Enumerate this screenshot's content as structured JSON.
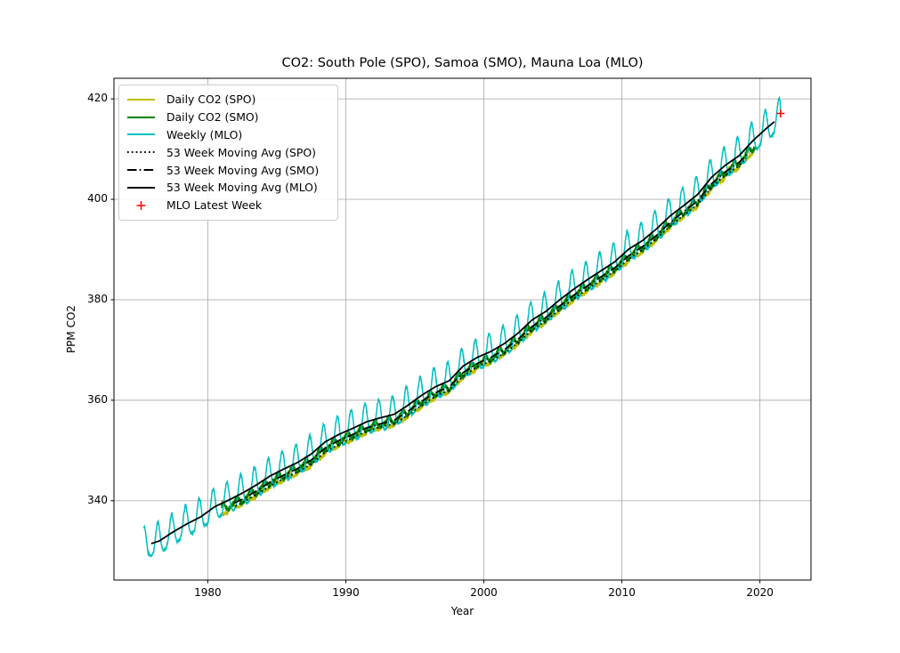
{
  "chart_data": {
    "type": "line",
    "title": "CO2: South Pole (SPO), Samoa (SMO), Mauna Loa (MLO)",
    "xlabel": "Year",
    "ylabel": "PPM CO2",
    "xlim": [
      1973.2,
      2023.7
    ],
    "ylim": [
      324.2,
      424.1
    ],
    "xticks": [
      1980,
      1990,
      2000,
      2010,
      2020
    ],
    "yticks": [
      340,
      360,
      380,
      400,
      420
    ],
    "grid": true,
    "legend_position": "upper-left",
    "colors": {
      "grid": "#b0b0b0",
      "frame": "#000000",
      "spo_daily": "#bfbf00",
      "smo_daily": "#008000",
      "mlo_weekly": "#00bfbf",
      "moving_avg": "#000000",
      "latest_week": "#ff0000"
    },
    "anchors": {
      "mlo": [
        [
          1975,
          331.1
        ],
        [
          1976,
          332.0
        ],
        [
          1977,
          333.8
        ],
        [
          1978,
          335.4
        ],
        [
          1979,
          336.8
        ],
        [
          1980,
          338.8
        ],
        [
          1981,
          340.1
        ],
        [
          1982,
          341.5
        ],
        [
          1983,
          343.1
        ],
        [
          1984,
          344.9
        ],
        [
          1985,
          346.3
        ],
        [
          1986,
          347.6
        ],
        [
          1987,
          349.3
        ],
        [
          1988,
          351.7
        ],
        [
          1989,
          353.2
        ],
        [
          1990,
          354.4
        ],
        [
          1991,
          355.7
        ],
        [
          1992,
          356.5
        ],
        [
          1993,
          357.2
        ],
        [
          1994,
          359.0
        ],
        [
          1995,
          361.0
        ],
        [
          1996,
          362.7
        ],
        [
          1997,
          363.9
        ],
        [
          1998,
          366.8
        ],
        [
          1999,
          368.5
        ],
        [
          2000,
          369.7
        ],
        [
          2001,
          371.3
        ],
        [
          2002,
          373.4
        ],
        [
          2003,
          376.0
        ],
        [
          2004,
          377.7
        ],
        [
          2005,
          380.0
        ],
        [
          2006,
          382.1
        ],
        [
          2007,
          384.0
        ],
        [
          2008,
          385.8
        ],
        [
          2009,
          387.6
        ],
        [
          2010,
          390.1
        ],
        [
          2011,
          391.8
        ],
        [
          2012,
          394.1
        ],
        [
          2013,
          396.7
        ],
        [
          2014,
          398.8
        ],
        [
          2015,
          401.0
        ],
        [
          2016,
          404.4
        ],
        [
          2017,
          406.8
        ],
        [
          2018,
          408.7
        ],
        [
          2019,
          411.7
        ],
        [
          2020,
          414.2
        ],
        [
          2021,
          416.5
        ]
      ],
      "smo": [
        [
          1981,
          339.0
        ],
        [
          1982,
          340.3
        ],
        [
          1983,
          341.9
        ],
        [
          1984,
          343.7
        ],
        [
          1985,
          345.1
        ],
        [
          1986,
          346.4
        ],
        [
          1987,
          348.1
        ],
        [
          1988,
          350.5
        ],
        [
          1989,
          352.0
        ],
        [
          1990,
          353.2
        ],
        [
          1991,
          354.5
        ],
        [
          1992,
          355.3
        ],
        [
          1993,
          356.0
        ],
        [
          1994,
          357.8
        ],
        [
          1995,
          359.8
        ],
        [
          1996,
          361.5
        ],
        [
          1997,
          362.7
        ],
        [
          1998,
          365.5
        ],
        [
          1999,
          367.3
        ],
        [
          2000,
          368.5
        ],
        [
          2001,
          370.1
        ],
        [
          2002,
          372.2
        ],
        [
          2003,
          374.7
        ],
        [
          2004,
          376.5
        ],
        [
          2005,
          378.8
        ],
        [
          2006,
          380.9
        ],
        [
          2007,
          382.8
        ],
        [
          2008,
          384.6
        ],
        [
          2009,
          386.4
        ],
        [
          2010,
          388.8
        ],
        [
          2011,
          390.6
        ],
        [
          2012,
          392.8
        ],
        [
          2013,
          395.4
        ],
        [
          2014,
          397.6
        ],
        [
          2015,
          399.7
        ],
        [
          2016,
          403.1
        ],
        [
          2017,
          405.5
        ],
        [
          2018,
          407.4
        ],
        [
          2019,
          410.3
        ]
      ],
      "spo": [
        [
          1981,
          338.2
        ],
        [
          1982,
          339.6
        ],
        [
          1983,
          341.2
        ],
        [
          1984,
          342.9
        ],
        [
          1985,
          344.4
        ],
        [
          1986,
          345.7
        ],
        [
          1987,
          347.3
        ],
        [
          1988,
          349.7
        ],
        [
          1989,
          351.2
        ],
        [
          1990,
          352.5
        ],
        [
          1991,
          353.8
        ],
        [
          1992,
          354.7
        ],
        [
          1993,
          355.3
        ],
        [
          1994,
          357.0
        ],
        [
          1995,
          359.0
        ],
        [
          1996,
          360.8
        ],
        [
          1997,
          362.0
        ],
        [
          1998,
          364.8
        ],
        [
          1999,
          366.6
        ],
        [
          2000,
          367.8
        ],
        [
          2001,
          369.4
        ],
        [
          2002,
          371.5
        ],
        [
          2003,
          374.0
        ],
        [
          2004,
          375.8
        ],
        [
          2005,
          378.1
        ],
        [
          2006,
          380.2
        ],
        [
          2007,
          382.1
        ],
        [
          2008,
          383.9
        ],
        [
          2009,
          385.7
        ],
        [
          2010,
          388.1
        ],
        [
          2011,
          389.9
        ],
        [
          2012,
          392.1
        ],
        [
          2013,
          394.7
        ],
        [
          2014,
          396.9
        ],
        [
          2015,
          399.0
        ],
        [
          2016,
          402.4
        ],
        [
          2017,
          404.8
        ],
        [
          2018,
          406.7
        ],
        [
          2019,
          409.6
        ]
      ]
    },
    "series": [
      {
        "name": "Daily CO2 (SPO)",
        "kind": "curve",
        "color": "#bfbf00",
        "dash": "solid",
        "width": 1.4,
        "anchors": "spo",
        "range": [
          1981.05,
          2019.5
        ],
        "step": 0.01,
        "seasonal": {
          "a1": 0.55,
          "p1": 0.8,
          "a2": 0.15,
          "p2": 0.8
        },
        "noise": 0.45
      },
      {
        "name": "Daily CO2 (SMO)",
        "kind": "curve",
        "color": "#008000",
        "dash": "solid",
        "width": 1.4,
        "anchors": "smo",
        "range": [
          1981.0,
          2019.7
        ],
        "step": 0.01,
        "seasonal": {
          "a1": 0.7,
          "p1": 0.08,
          "a2": 0.2,
          "p2": 0.15
        },
        "noise": 0.55
      },
      {
        "name": "Weekly (MLO)",
        "kind": "curve",
        "color": "#00bfbf",
        "dash": "solid",
        "width": 1.5,
        "anchors": "mlo",
        "range": [
          1975.37,
          2021.47
        ],
        "step": 0.01923,
        "seasonal": {
          "a1": 3.1,
          "p1": 0.38,
          "a2": 0.7,
          "p2": 0.38
        },
        "noise": 0.3,
        "endpoint": [
          2021.5,
          417.1
        ]
      },
      {
        "name": "53 Week Moving Avg (SPO)",
        "kind": "curve",
        "color": "#000000",
        "dash": "dotted",
        "width": 1.7,
        "anchors": "spo",
        "range": [
          1982.0,
          2019.0
        ],
        "step": 0.05
      },
      {
        "name": "53 Week Moving Avg (SMO)",
        "kind": "curve",
        "color": "#000000",
        "dash": "dashdot",
        "width": 1.7,
        "anchors": "smo",
        "range": [
          1981.9,
          2019.2
        ],
        "step": 0.05
      },
      {
        "name": "53 Week Moving Avg (MLO)",
        "kind": "curve",
        "color": "#000000",
        "dash": "solid",
        "width": 1.8,
        "anchors": "mlo",
        "range": [
          1975.9,
          2021.05
        ],
        "step": 0.05
      },
      {
        "name": "MLO Latest Week",
        "kind": "marker",
        "symbol": "plus",
        "color": "#ff0000",
        "point": [
          2021.5,
          417.1
        ]
      }
    ]
  }
}
